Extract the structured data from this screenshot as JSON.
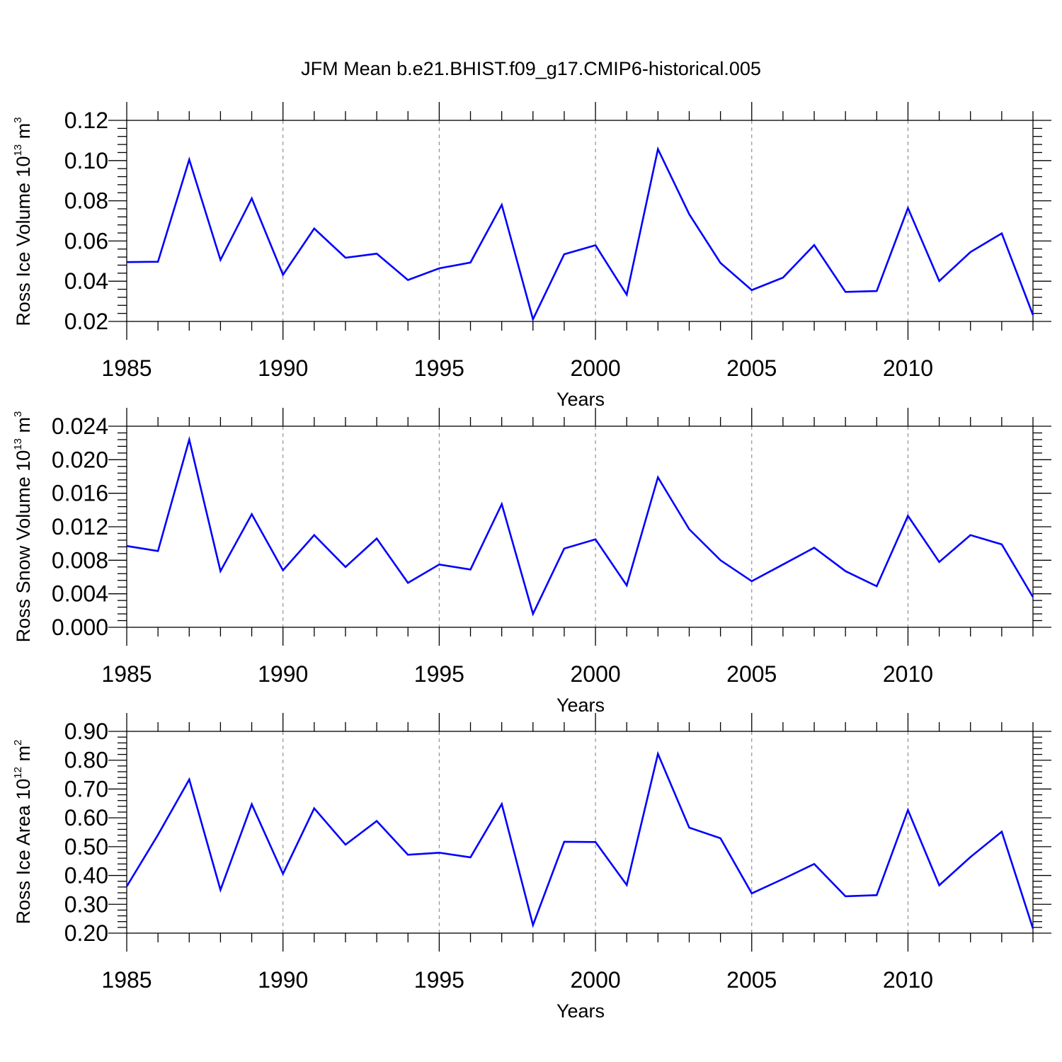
{
  "figure": {
    "title": "JFM Mean b.e21.BHIST.f09_g17.CMIP6-historical.005"
  },
  "chart_data": [
    {
      "type": "line",
      "xlabel": "Years",
      "ylabel": {
        "prefix": "Ross Ice Volume 10",
        "exp1": "13",
        "unit": " m",
        "exp2": "3"
      },
      "xlim": [
        1985,
        2014
      ],
      "ylim": [
        0.02,
        0.12
      ],
      "yticks": [
        0.02,
        0.04,
        0.06,
        0.08,
        0.1,
        0.12
      ],
      "ytick_labels": [
        "0.02",
        "0.04",
        "0.06",
        "0.08",
        "0.10",
        "0.12"
      ],
      "xticks": [
        1985,
        1990,
        1995,
        2000,
        2005,
        2010
      ],
      "xtick_labels": [
        "1985",
        "1990",
        "1995",
        "2000",
        "2005",
        "2010"
      ],
      "grid": "vertical dashed at labeled years",
      "color": "#0000ff",
      "x": [
        1985,
        1986,
        1987,
        1988,
        1989,
        1990,
        1991,
        1992,
        1993,
        1994,
        1995,
        1996,
        1997,
        1998,
        1999,
        2000,
        2001,
        2002,
        2003,
        2004,
        2005,
        2006,
        2007,
        2008,
        2009,
        2010,
        2011,
        2012,
        2013,
        2014
      ],
      "values": [
        0.0495,
        0.0497,
        0.1005,
        0.0506,
        0.0812,
        0.0432,
        0.0662,
        0.0517,
        0.0537,
        0.0406,
        0.0464,
        0.0493,
        0.078,
        0.0211,
        0.0534,
        0.0579,
        0.0333,
        0.1057,
        0.0733,
        0.0491,
        0.0356,
        0.0418,
        0.058,
        0.0347,
        0.0351,
        0.0764,
        0.0401,
        0.0545,
        0.0638,
        0.0232
      ]
    },
    {
      "type": "line",
      "xlabel": "Years",
      "ylabel": {
        "prefix": "Ross Snow Volume 10",
        "exp1": "13",
        "unit": " m",
        "exp2": "3"
      },
      "xlim": [
        1985,
        2014
      ],
      "ylim": [
        0.0,
        0.024
      ],
      "yticks": [
        0.0,
        0.004,
        0.008,
        0.012,
        0.016,
        0.02,
        0.024
      ],
      "ytick_labels": [
        "0.000",
        "0.004",
        "0.008",
        "0.012",
        "0.016",
        "0.020",
        "0.024"
      ],
      "xticks": [
        1985,
        1990,
        1995,
        2000,
        2005,
        2010
      ],
      "xtick_labels": [
        "1985",
        "1990",
        "1995",
        "2000",
        "2005",
        "2010"
      ],
      "grid": "vertical dashed at labeled years",
      "color": "#0000ff",
      "x": [
        1985,
        1986,
        1987,
        1988,
        1989,
        1990,
        1991,
        1992,
        1993,
        1994,
        1995,
        1996,
        1997,
        1998,
        1999,
        2000,
        2001,
        2002,
        2003,
        2004,
        2005,
        2006,
        2007,
        2008,
        2009,
        2010,
        2011,
        2012,
        2013,
        2014
      ],
      "values": [
        0.0097,
        0.0091,
        0.0224,
        0.0067,
        0.0135,
        0.0068,
        0.011,
        0.0072,
        0.0106,
        0.0053,
        0.0075,
        0.0069,
        0.0147,
        0.0016,
        0.0094,
        0.0105,
        0.005,
        0.0179,
        0.0117,
        0.008,
        0.0055,
        0.0075,
        0.0095,
        0.0067,
        0.0049,
        0.0133,
        0.0078,
        0.011,
        0.0099,
        0.0036
      ]
    },
    {
      "type": "line",
      "xlabel": "Years",
      "ylabel": {
        "prefix": "Ross Ice Area 10",
        "exp1": "12",
        "unit": " m",
        "exp2": "2"
      },
      "xlim": [
        1985,
        2014
      ],
      "ylim": [
        0.2,
        0.9
      ],
      "yticks": [
        0.2,
        0.3,
        0.4,
        0.5,
        0.6,
        0.7,
        0.8,
        0.9
      ],
      "ytick_labels": [
        "0.20",
        "0.30",
        "0.40",
        "0.50",
        "0.60",
        "0.70",
        "0.80",
        "0.90"
      ],
      "xticks": [
        1985,
        1990,
        1995,
        2000,
        2005,
        2010
      ],
      "xtick_labels": [
        "1985",
        "1990",
        "1995",
        "2000",
        "2005",
        "2010"
      ],
      "grid": "vertical dashed at labeled years",
      "color": "#0000ff",
      "x": [
        1985,
        1986,
        1987,
        1988,
        1989,
        1990,
        1991,
        1992,
        1993,
        1994,
        1995,
        1996,
        1997,
        1998,
        1999,
        2000,
        2001,
        2002,
        2003,
        2004,
        2005,
        2006,
        2007,
        2008,
        2009,
        2010,
        2011,
        2012,
        2013,
        2014
      ],
      "values": [
        0.362,
        0.541,
        0.733,
        0.35,
        0.647,
        0.406,
        0.633,
        0.507,
        0.589,
        0.472,
        0.479,
        0.463,
        0.648,
        0.228,
        0.517,
        0.516,
        0.367,
        0.822,
        0.566,
        0.529,
        0.338,
        0.388,
        0.44,
        0.328,
        0.332,
        0.627,
        0.366,
        0.464,
        0.552,
        0.216
      ]
    }
  ]
}
